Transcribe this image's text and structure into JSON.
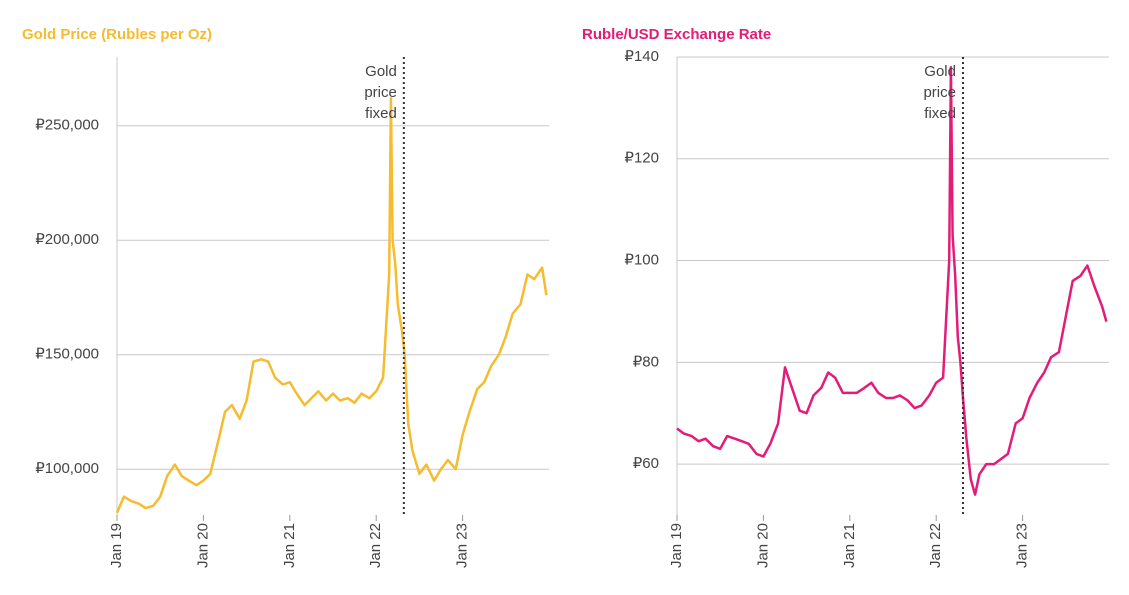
{
  "chart_data": [
    {
      "type": "line",
      "title": "Gold Price (Rubles per Oz)",
      "color": "#f6bb2f",
      "xlim": [
        2019,
        2024
      ],
      "ylim": [
        80000,
        280000
      ],
      "xticks": [
        {
          "value": 2019,
          "label": "Jan 19"
        },
        {
          "value": 2020,
          "label": "Jan 20"
        },
        {
          "value": 2021,
          "label": "Jan 21"
        },
        {
          "value": 2022,
          "label": "Jan 22"
        },
        {
          "value": 2023,
          "label": "Jan 23"
        }
      ],
      "yticks": [
        {
          "value": 100000,
          "label": "₽100,000"
        },
        {
          "value": 150000,
          "label": "₽150,000"
        },
        {
          "value": 200000,
          "label": "₽200,000"
        },
        {
          "value": 250000,
          "label": "₽250,000"
        }
      ],
      "grid": true,
      "annotation": {
        "text": [
          "Gold",
          "price",
          "fixed"
        ],
        "x": 2022.32
      },
      "x": [
        2019.0,
        2019.08,
        2019.17,
        2019.25,
        2019.33,
        2019.42,
        2019.5,
        2019.58,
        2019.67,
        2019.75,
        2019.83,
        2019.92,
        2020.0,
        2020.08,
        2020.17,
        2020.25,
        2020.33,
        2020.42,
        2020.5,
        2020.58,
        2020.67,
        2020.75,
        2020.83,
        2020.92,
        2021.0,
        2021.08,
        2021.17,
        2021.25,
        2021.33,
        2021.42,
        2021.5,
        2021.58,
        2021.67,
        2021.75,
        2021.83,
        2021.92,
        2022.0,
        2022.08,
        2022.15,
        2022.17,
        2022.19,
        2022.22,
        2022.25,
        2022.3,
        2022.33,
        2022.37,
        2022.42,
        2022.5,
        2022.58,
        2022.67,
        2022.75,
        2022.83,
        2022.92,
        2023.0,
        2023.08,
        2023.17,
        2023.25,
        2023.33,
        2023.42,
        2023.5,
        2023.58,
        2023.67,
        2023.75,
        2023.83,
        2023.92,
        2023.97
      ],
      "values": [
        81000,
        88000,
        86000,
        85000,
        83000,
        84000,
        88000,
        97000,
        102000,
        97000,
        95000,
        93000,
        95000,
        98000,
        112000,
        125000,
        128000,
        122000,
        130000,
        147000,
        148000,
        147000,
        140000,
        137000,
        138000,
        133000,
        128000,
        131000,
        134000,
        130000,
        133000,
        130000,
        131000,
        129000,
        133000,
        131000,
        134000,
        140000,
        185000,
        262000,
        200000,
        190000,
        172000,
        160000,
        150000,
        120000,
        108000,
        98000,
        102000,
        95000,
        100000,
        104000,
        100000,
        115000,
        125000,
        135000,
        138000,
        145000,
        150000,
        158000,
        168000,
        172000,
        185000,
        183000,
        188000,
        176000
      ]
    },
    {
      "type": "line",
      "title": "Ruble/USD Exchange Rate",
      "color": "#e31c79",
      "xlim": [
        2019,
        2024
      ],
      "ylim": [
        50,
        140
      ],
      "xticks": [
        {
          "value": 2019,
          "label": "Jan 19"
        },
        {
          "value": 2020,
          "label": "Jan 20"
        },
        {
          "value": 2021,
          "label": "Jan 21"
        },
        {
          "value": 2022,
          "label": "Jan 22"
        },
        {
          "value": 2023,
          "label": "Jan 23"
        }
      ],
      "yticks": [
        {
          "value": 60,
          "label": "₽60"
        },
        {
          "value": 80,
          "label": "₽80"
        },
        {
          "value": 100,
          "label": "₽100"
        },
        {
          "value": 120,
          "label": "₽120"
        },
        {
          "value": 140,
          "label": "₽140"
        }
      ],
      "grid": true,
      "annotation": {
        "text": [
          "Gold",
          "price",
          "fixed"
        ],
        "x": 2022.31
      },
      "x": [
        2019.0,
        2019.08,
        2019.17,
        2019.25,
        2019.33,
        2019.42,
        2019.5,
        2019.58,
        2019.67,
        2019.75,
        2019.83,
        2019.92,
        2020.0,
        2020.08,
        2020.17,
        2020.25,
        2020.33,
        2020.42,
        2020.5,
        2020.58,
        2020.67,
        2020.75,
        2020.83,
        2020.92,
        2021.0,
        2021.08,
        2021.17,
        2021.25,
        2021.33,
        2021.42,
        2021.5,
        2021.58,
        2021.67,
        2021.75,
        2021.83,
        2021.92,
        2022.0,
        2022.08,
        2022.15,
        2022.17,
        2022.19,
        2022.22,
        2022.25,
        2022.28,
        2022.31,
        2022.35,
        2022.4,
        2022.45,
        2022.5,
        2022.58,
        2022.67,
        2022.75,
        2022.83,
        2022.92,
        2023.0,
        2023.08,
        2023.17,
        2023.25,
        2023.33,
        2023.42,
        2023.5,
        2023.58,
        2023.67,
        2023.75,
        2023.83,
        2023.92,
        2023.97
      ],
      "values": [
        67,
        66,
        65.5,
        64.5,
        65,
        63.5,
        63,
        65.5,
        65,
        64.5,
        64,
        62,
        61.5,
        64,
        68,
        79,
        75,
        70.5,
        70,
        73.5,
        75,
        78,
        77,
        74,
        74,
        74,
        75,
        76,
        74,
        73,
        73,
        73.5,
        72.5,
        71,
        71.5,
        73.5,
        76,
        77,
        100,
        138,
        105,
        97,
        85,
        80,
        73,
        65,
        57,
        54,
        58,
        60,
        60,
        61,
        62,
        68,
        69,
        73,
        76,
        78,
        81,
        82,
        89,
        96,
        97,
        99,
        95,
        91,
        88
      ]
    }
  ]
}
